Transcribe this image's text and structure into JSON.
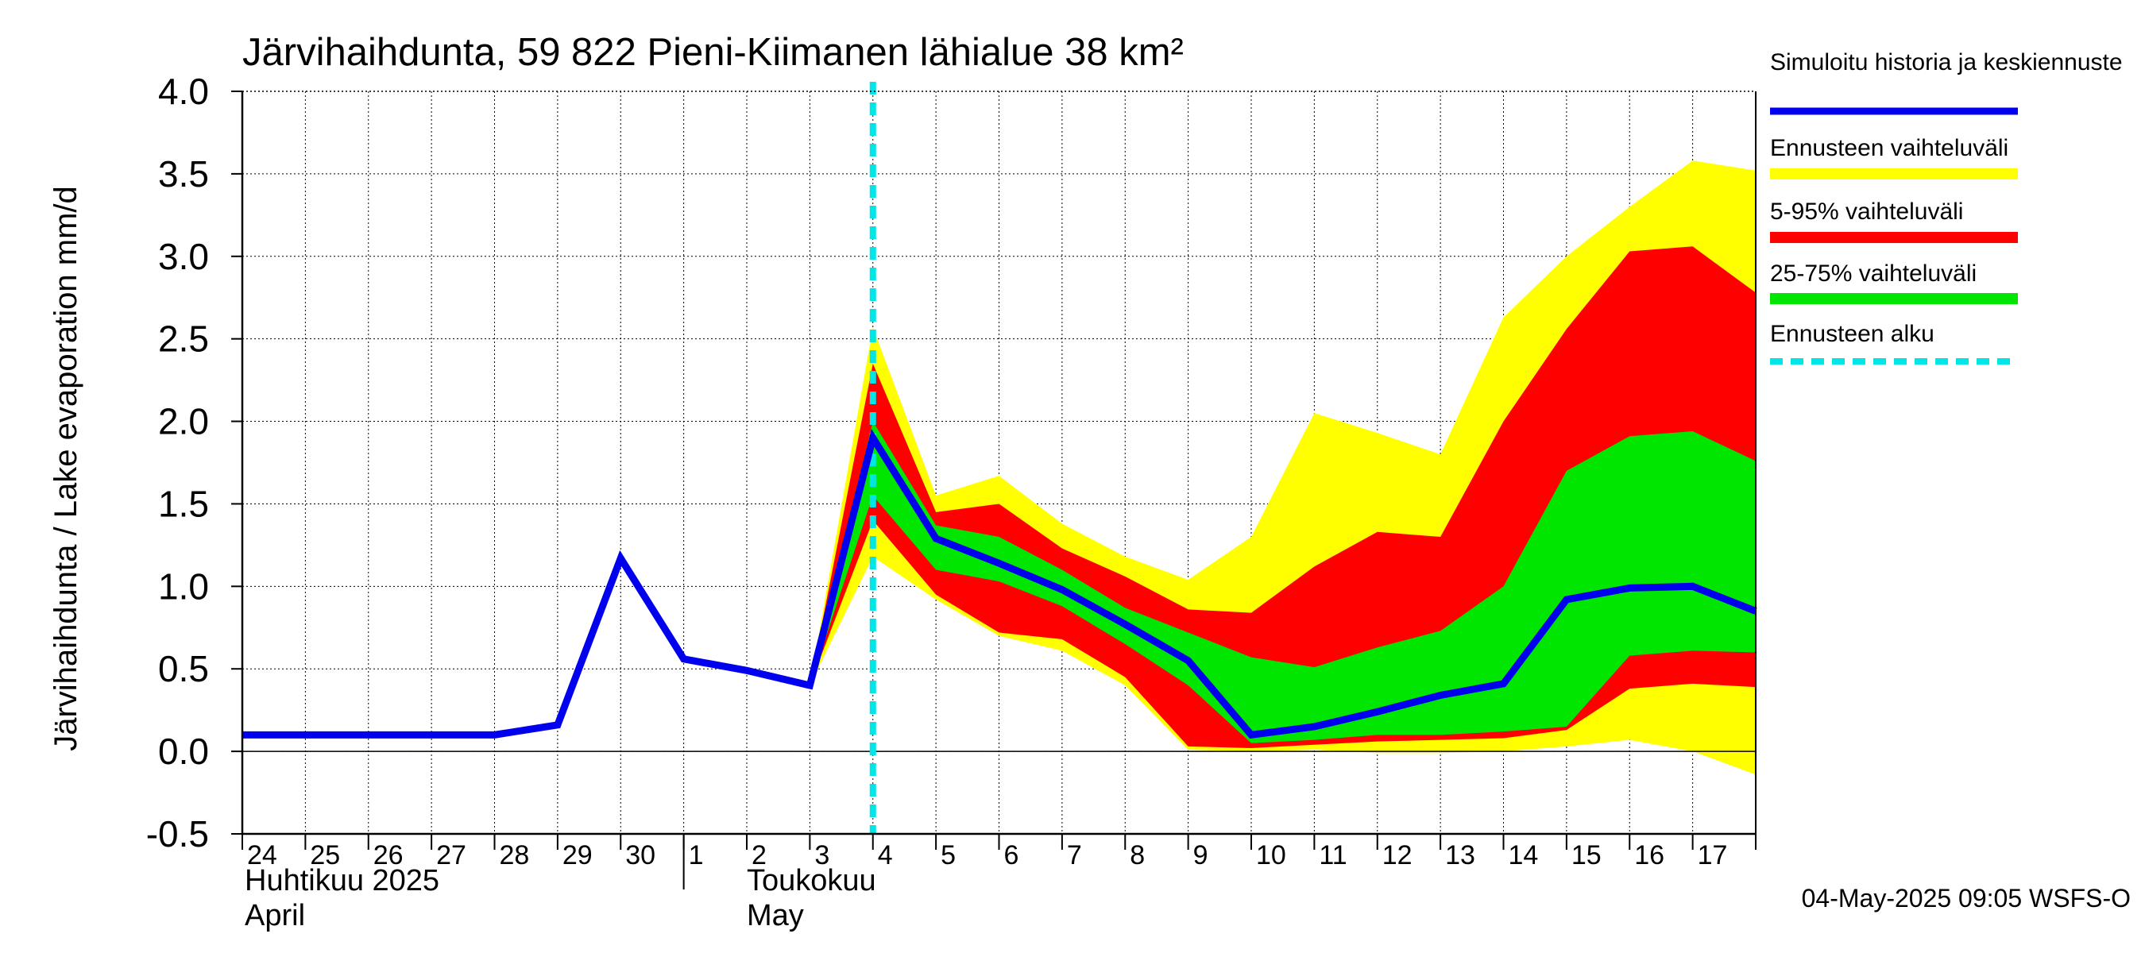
{
  "chart_data": {
    "type": "area",
    "title": "Järvihaihdunta, 59 822 Pieni-Kiimanen lähialue 38 km²",
    "ylabel": "Järvihaihdunta / Lake evaporation   mm/d",
    "ylim": [
      -0.5,
      4.0
    ],
    "yticks": [
      "-0.5",
      "0.0",
      "0.5",
      "1.0",
      "1.5",
      "2.0",
      "2.5",
      "3.0",
      "3.5",
      "4.0"
    ],
    "grid": true,
    "x_range": [
      0,
      24
    ],
    "x_tick_labels": [
      "24",
      "25",
      "26",
      "27",
      "28",
      "29",
      "30",
      "1",
      "2",
      "3",
      "4",
      "5",
      "6",
      "7",
      "8",
      "9",
      "10",
      "11",
      "12",
      "13",
      "14",
      "15",
      "16",
      "17"
    ],
    "month_labels": {
      "april_fi": "Huhtikuu  2025",
      "april_en": "April",
      "may_fi": "Toukokuu",
      "may_en": "May"
    },
    "forecast_start_x": 10,
    "history": {
      "name": "Simuloitu historia ja keskiennuste",
      "x": [
        0,
        1,
        2,
        3,
        4,
        5,
        6,
        7,
        8,
        9,
        10
      ],
      "values": [
        0.1,
        0.1,
        0.1,
        0.1,
        0.1,
        0.16,
        1.17,
        0.56,
        0.49,
        0.4,
        1.9
      ]
    },
    "forecast_x": [
      9,
      10,
      11,
      12,
      13,
      14,
      15,
      16,
      17,
      18,
      19,
      20,
      21,
      22,
      23,
      24
    ],
    "median": [
      0.4,
      1.9,
      1.29,
      1.14,
      0.98,
      0.77,
      0.55,
      0.1,
      0.15,
      0.24,
      0.34,
      0.41,
      0.92,
      0.99,
      1.0,
      0.85
    ],
    "band_yellow": {
      "name": "Ennusteen vaihteluväli",
      "lower": [
        0.4,
        1.18,
        0.92,
        0.7,
        0.61,
        0.4,
        0.01,
        0.0,
        0.01,
        -0.01,
        -0.01,
        0.0,
        0.03,
        0.07,
        0.0,
        -0.14
      ],
      "upper": [
        0.4,
        2.57,
        1.55,
        1.67,
        1.38,
        1.18,
        1.04,
        1.3,
        2.05,
        1.93,
        1.8,
        2.63,
        3.0,
        3.3,
        3.58,
        3.52
      ]
    },
    "band_red": {
      "name": "5-95% vaihteluväli",
      "lower": [
        0.4,
        1.4,
        0.95,
        0.72,
        0.68,
        0.45,
        0.03,
        0.02,
        0.04,
        0.06,
        0.07,
        0.08,
        0.13,
        0.38,
        0.41,
        0.39
      ],
      "upper": [
        0.4,
        2.35,
        1.45,
        1.5,
        1.23,
        1.06,
        0.86,
        0.84,
        1.12,
        1.33,
        1.3,
        2.0,
        2.56,
        3.03,
        3.06,
        2.78
      ]
    },
    "band_green": {
      "name": "25-75% vaihteluväli",
      "lower": [
        0.4,
        1.55,
        1.1,
        1.03,
        0.88,
        0.65,
        0.4,
        0.05,
        0.07,
        0.1,
        0.1,
        0.12,
        0.15,
        0.58,
        0.61,
        0.6
      ],
      "upper": [
        0.4,
        2.0,
        1.37,
        1.3,
        1.1,
        0.87,
        0.72,
        0.57,
        0.51,
        0.63,
        0.73,
        1.0,
        1.7,
        1.91,
        1.94,
        1.76
      ]
    },
    "legend": {
      "history": "Simuloitu historia ja keskiennuste",
      "yellow": "Ennusteen vaihteluväli",
      "red": "5-95% vaihteluväli",
      "green": "25-75% vaihteluväli",
      "start": "Ennusteen alku"
    },
    "legend_placement": "right",
    "footer": "04-May-2025 09:05 WSFS-O",
    "colors": {
      "line": "#0000ee",
      "yellow": "#ffff00",
      "red": "#ff0000",
      "green": "#00e600",
      "forecast_start": "#00e6e6",
      "grid": "#000000"
    }
  }
}
